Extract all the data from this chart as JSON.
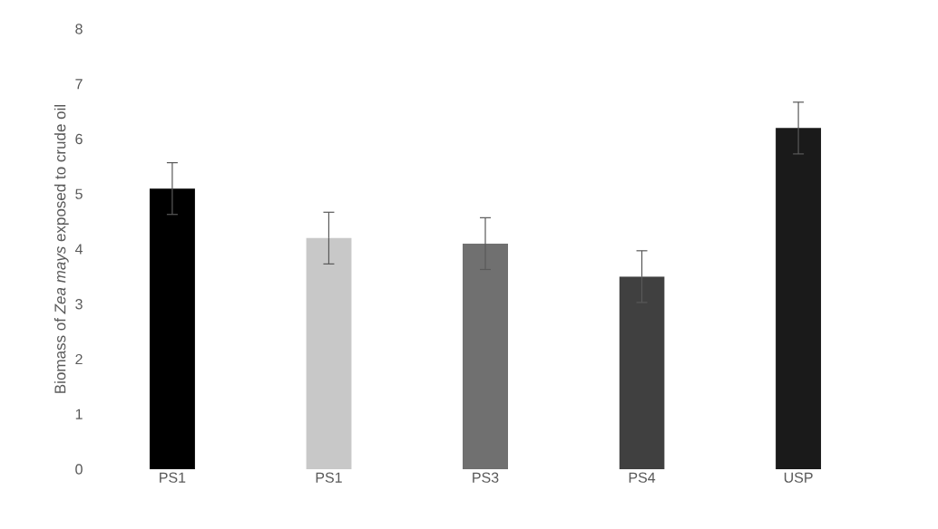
{
  "chart_data": {
    "type": "bar",
    "ylabel": "Biomass of *Zea mays* exposed to crude oil",
    "categories": [
      "PS1",
      "PS1",
      "PS3",
      "PS4",
      "USP"
    ],
    "values": [
      5.1,
      4.2,
      4.1,
      3.5,
      6.2
    ],
    "errors": [
      0.47,
      0.47,
      0.47,
      0.47,
      0.47
    ],
    "colors": [
      "#000000",
      "#c8c8c8",
      "#707070",
      "#404040",
      "#1a1a1a"
    ],
    "ylim": [
      0,
      8
    ],
    "yticks": [
      0,
      1,
      2,
      3,
      4,
      5,
      6,
      7,
      8
    ],
    "grid": false
  }
}
